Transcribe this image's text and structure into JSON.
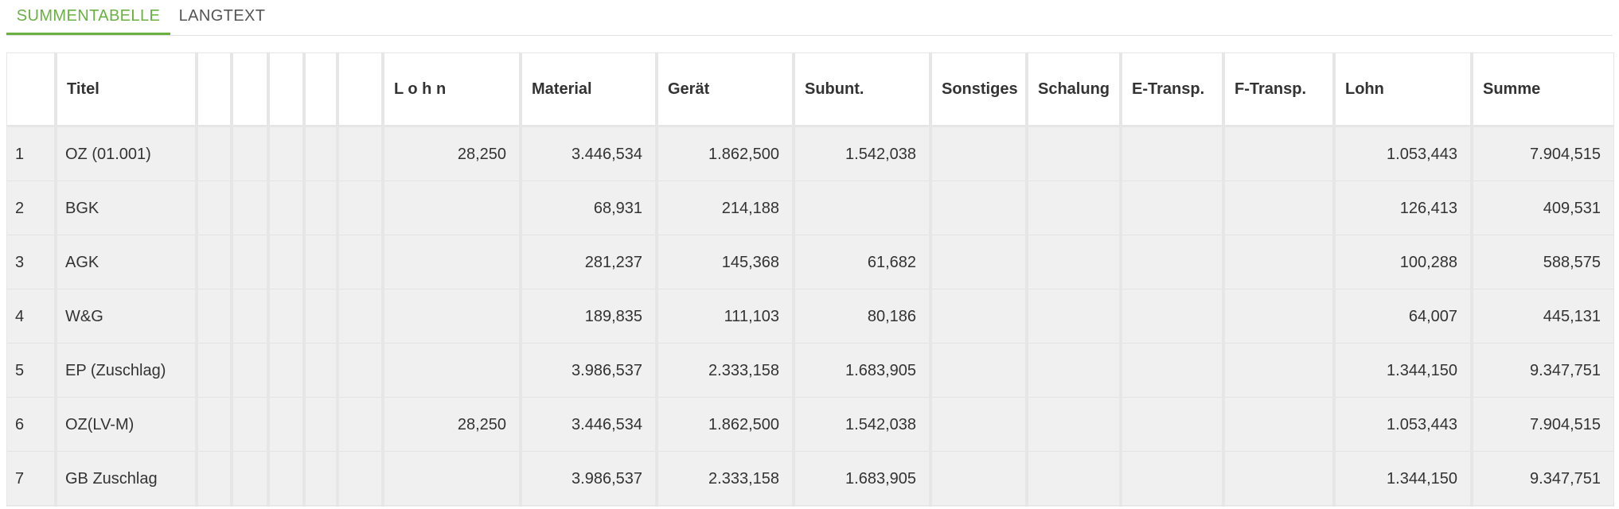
{
  "tabs": [
    {
      "label": "SUMMENTABELLE",
      "active": true
    },
    {
      "label": "LANGTEXT",
      "active": false
    }
  ],
  "accent_color": "#6ab043",
  "table": {
    "columns": [
      "",
      "Titel",
      "",
      "",
      "",
      "",
      "",
      "L o h n",
      "Material",
      "Gerät",
      "Subunt.",
      "Sonstiges",
      "Schalung",
      "E-Transp.",
      "F-Transp.",
      "Lohn",
      "Summe"
    ],
    "rows": [
      [
        "1",
        "OZ (01.001)",
        "",
        "",
        "",
        "",
        "",
        "28,250",
        "3.446,534",
        "1.862,500",
        "1.542,038",
        "",
        "",
        "",
        "",
        "1.053,443",
        "7.904,515"
      ],
      [
        "2",
        "BGK",
        "",
        "",
        "",
        "",
        "",
        "",
        "68,931",
        "214,188",
        "",
        "",
        "",
        "",
        "",
        "126,413",
        "409,531"
      ],
      [
        "3",
        "AGK",
        "",
        "",
        "",
        "",
        "",
        "",
        "281,237",
        "145,368",
        "61,682",
        "",
        "",
        "",
        "",
        "100,288",
        "588,575"
      ],
      [
        "4",
        "W&G",
        "",
        "",
        "",
        "",
        "",
        "",
        "189,835",
        "111,103",
        "80,186",
        "",
        "",
        "",
        "",
        "64,007",
        "445,131"
      ],
      [
        "5",
        "EP (Zuschlag)",
        "",
        "",
        "",
        "",
        "",
        "",
        "3.986,537",
        "2.333,158",
        "1.683,905",
        "",
        "",
        "",
        "",
        "1.344,150",
        "9.347,751"
      ],
      [
        "6",
        "OZ(LV-M)",
        "",
        "",
        "",
        "",
        "",
        "28,250",
        "3.446,534",
        "1.862,500",
        "1.542,038",
        "",
        "",
        "",
        "",
        "1.053,443",
        "7.904,515"
      ],
      [
        "7",
        "GB Zuschlag",
        "",
        "",
        "",
        "",
        "",
        "",
        "3.986,537",
        "2.333,158",
        "1.683,905",
        "",
        "",
        "",
        "",
        "1.344,150",
        "9.347,751"
      ]
    ]
  }
}
